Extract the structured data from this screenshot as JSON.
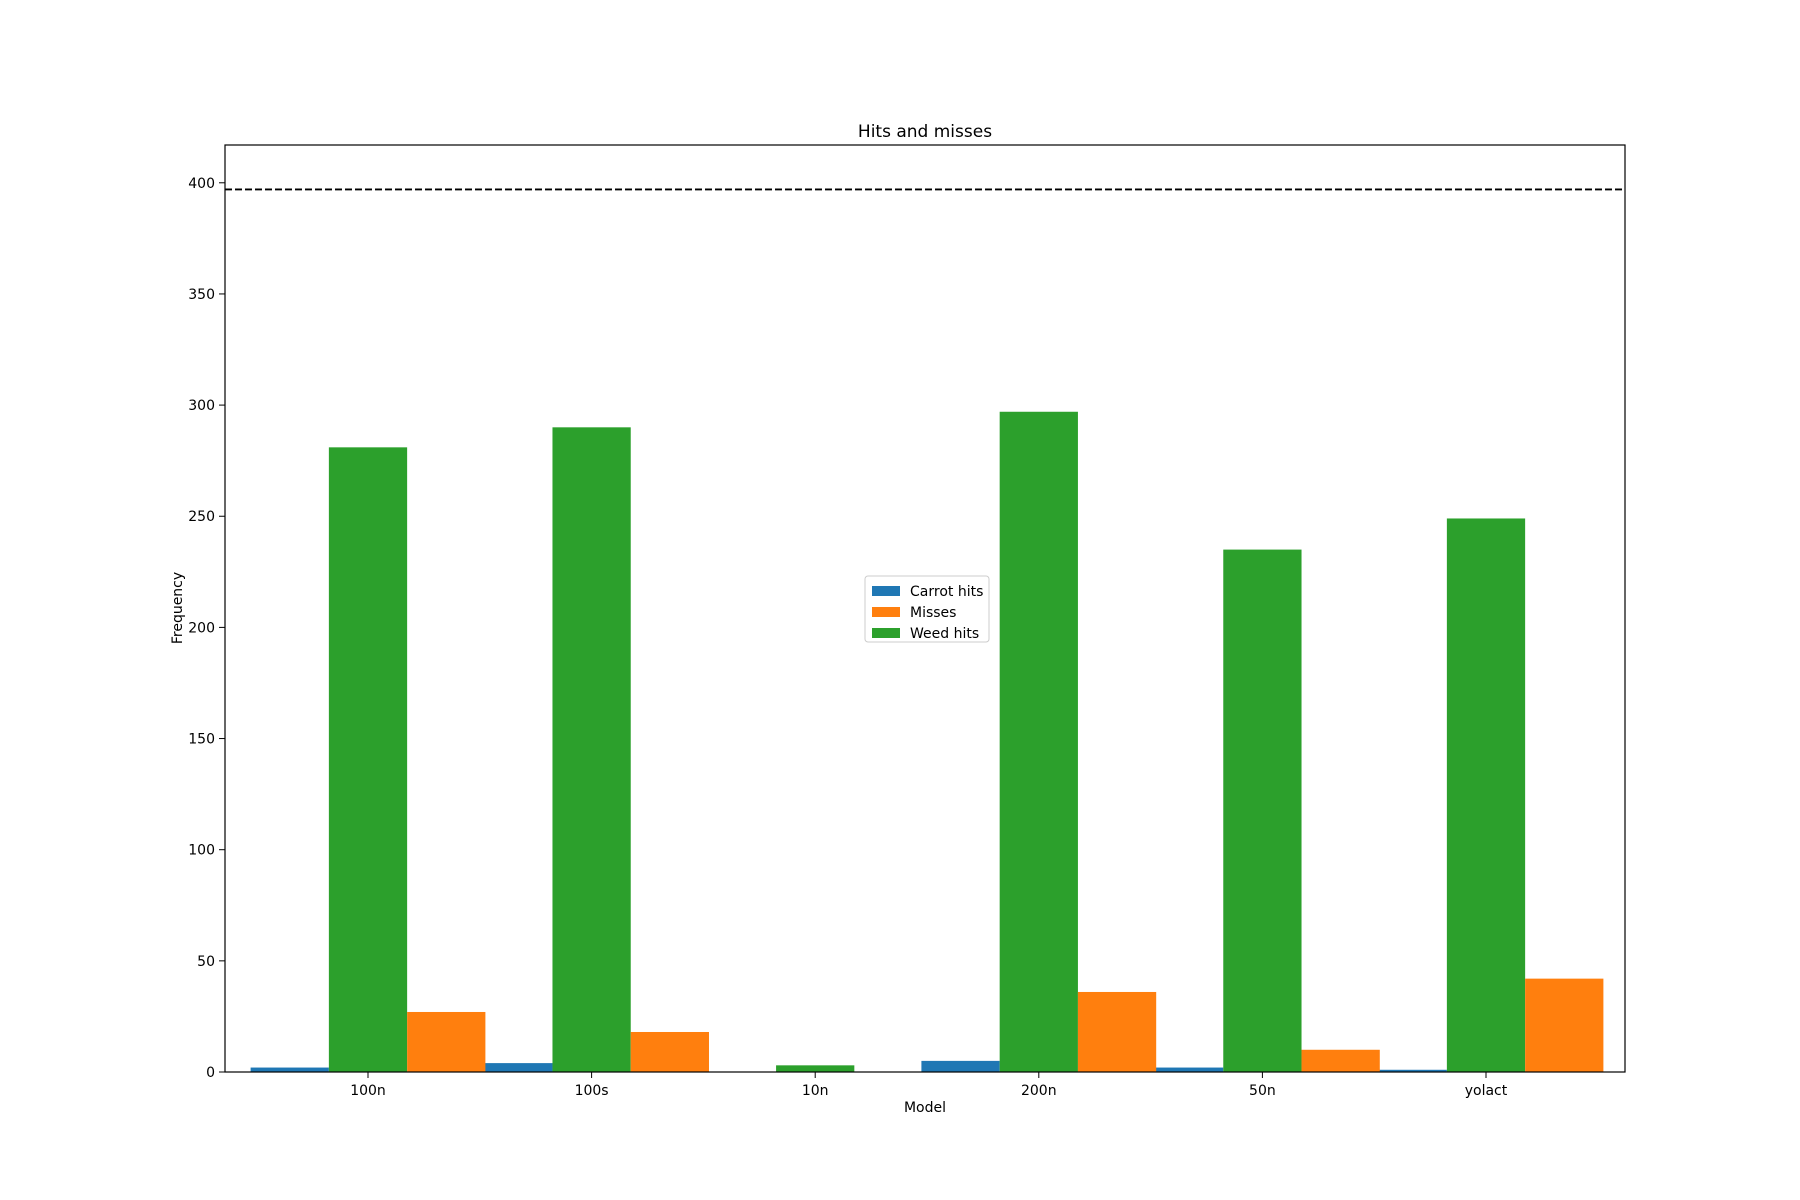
{
  "chart_data": {
    "type": "bar",
    "title": "Hits and misses",
    "xlabel": "Model",
    "ylabel": "Frequency",
    "categories": [
      "100n",
      "100s",
      "10n",
      "200n",
      "50n",
      "yolact"
    ],
    "series": [
      {
        "name": "Carrot hits",
        "color": "#1f77b4",
        "values": [
          2,
          4,
          0,
          5,
          2,
          1
        ]
      },
      {
        "name": "Weed hits",
        "color": "#2ca02c",
        "values": [
          281,
          290,
          3,
          297,
          235,
          249
        ]
      },
      {
        "name": "Misses",
        "color": "#ff7f0e",
        "values": [
          27,
          18,
          0,
          36,
          10,
          42
        ]
      }
    ],
    "legend_order": [
      "Carrot hits",
      "Misses",
      "Weed hits"
    ],
    "legend_position": "center",
    "reference_line": {
      "value": 397,
      "style": "dashed",
      "color": "#000000"
    },
    "ylim": [
      0,
      417
    ],
    "yticks": [
      0,
      50,
      100,
      150,
      200,
      250,
      300,
      350,
      400
    ],
    "grid": false
  }
}
